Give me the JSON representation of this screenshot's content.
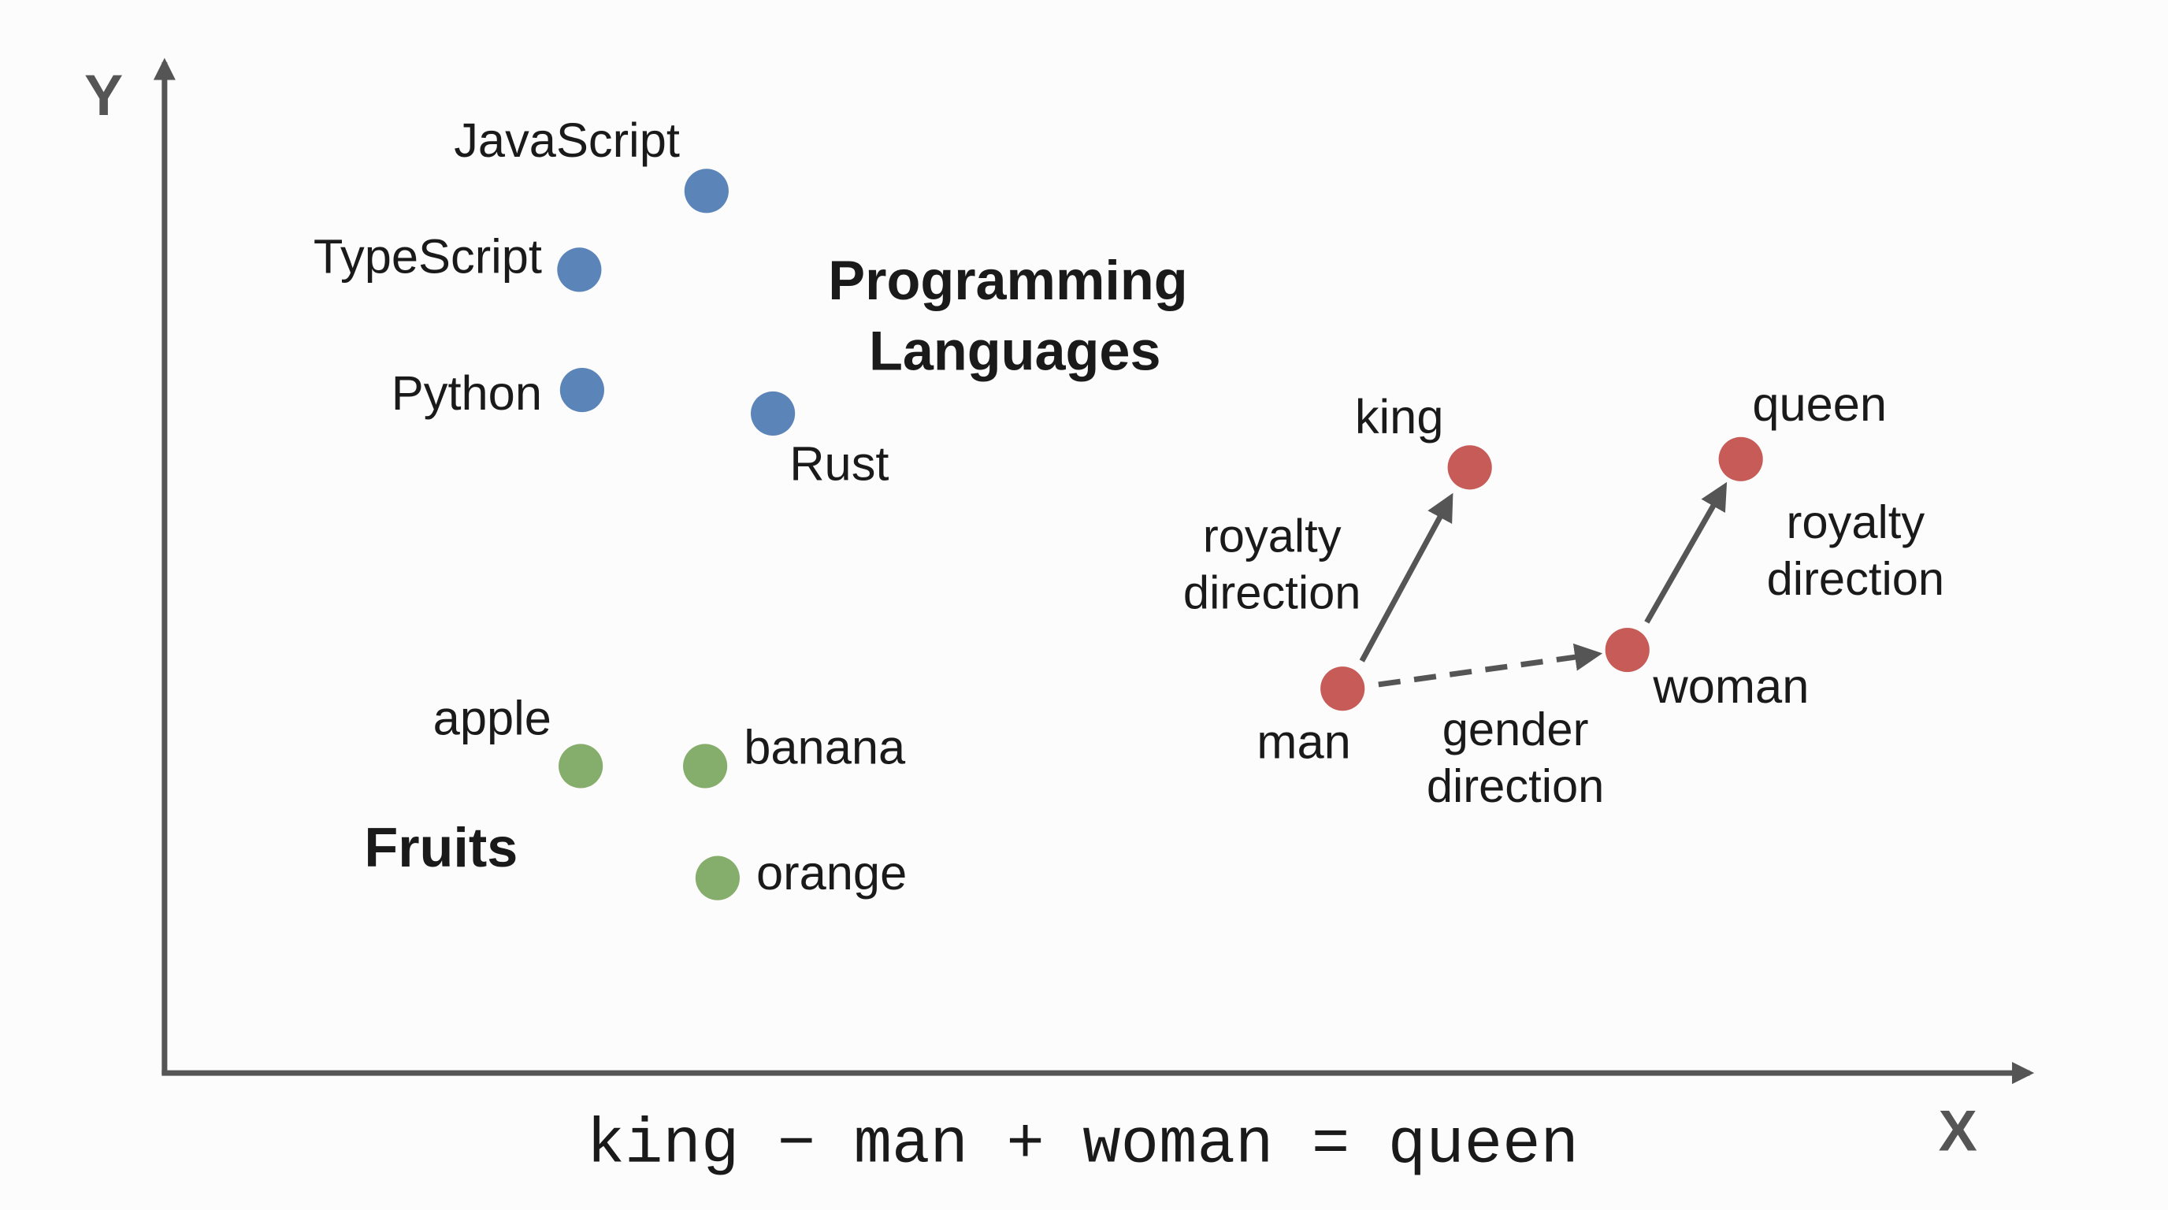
{
  "axes": {
    "y_label": "Y",
    "x_label": "X"
  },
  "groups": [
    {
      "label_lines": [
        "Programming",
        "Languages"
      ],
      "color": "#5b84b8",
      "words": [
        "JavaScript",
        "TypeScript",
        "Python",
        "Rust"
      ]
    },
    {
      "label_lines": [
        "Fruits"
      ],
      "color": "#85ad6b",
      "words": [
        "apple",
        "banana",
        "orange"
      ]
    },
    {
      "color": "#c65b57",
      "words": [
        "king",
        "queen",
        "man",
        "woman"
      ]
    }
  ],
  "arrows": [
    {
      "label_lines": [
        "royalty",
        "direction"
      ]
    },
    {
      "label_lines": [
        "royalty",
        "direction"
      ]
    },
    {
      "label_lines": [
        "gender",
        "direction"
      ]
    }
  ],
  "equation": "king − man + woman = queen"
}
